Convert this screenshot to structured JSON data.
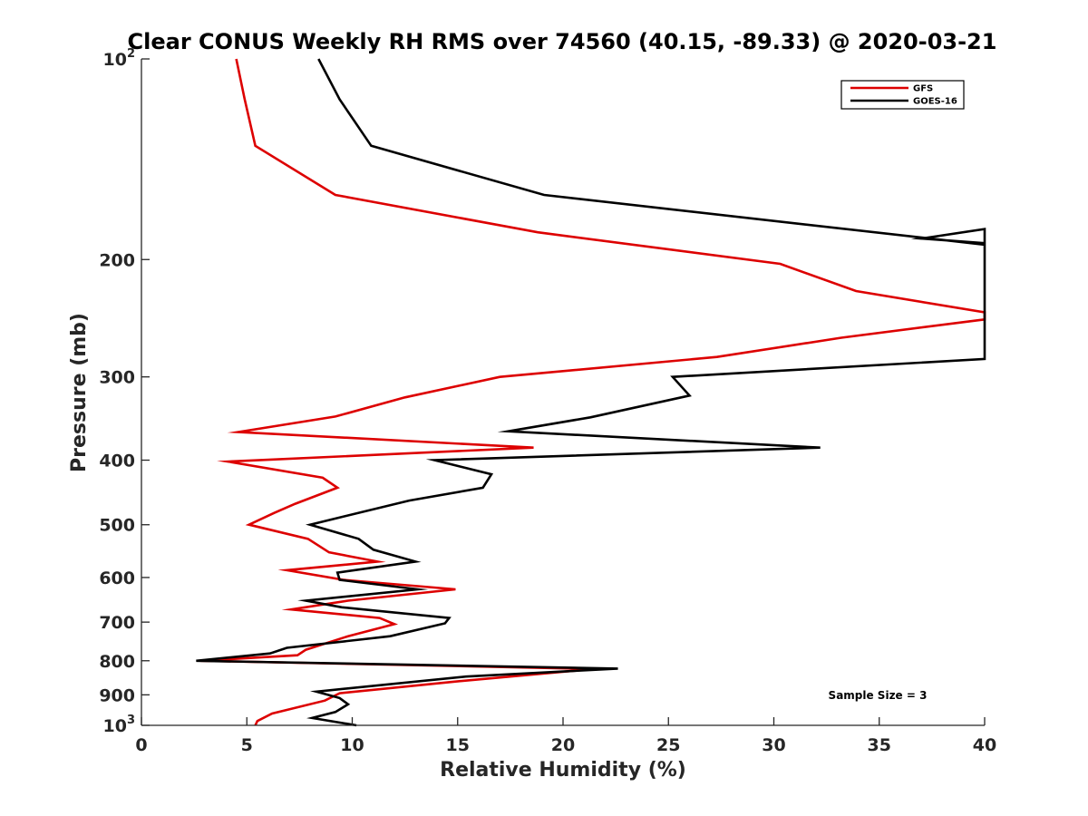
{
  "chart_data": {
    "type": "line",
    "title": "Clear CONUS Weekly RH RMS over 74560 (40.15, -89.33) @ 2020-03-21",
    "xlabel": "Relative Humidity (%)",
    "ylabel": "Pressure (mb)",
    "xlim": [
      0,
      40
    ],
    "ylim": [
      100,
      1000
    ],
    "yscale": "log",
    "y_reversed": true,
    "grid": false,
    "legend_position": "top-right",
    "x_ticks": [
      0,
      5,
      10,
      15,
      20,
      25,
      30,
      35,
      40
    ],
    "x_tick_labels": [
      "0",
      "5",
      "10",
      "15",
      "20",
      "25",
      "30",
      "35",
      "40"
    ],
    "y_ticks": [
      100,
      200,
      300,
      400,
      500,
      600,
      700,
      800,
      900,
      1000
    ],
    "y_tick_labels": [
      {
        "base": "10",
        "exp": "2"
      },
      {
        "base": "200",
        "exp": ""
      },
      {
        "base": "300",
        "exp": ""
      },
      {
        "base": "400",
        "exp": ""
      },
      {
        "base": "500",
        "exp": ""
      },
      {
        "base": "600",
        "exp": ""
      },
      {
        "base": "700",
        "exp": ""
      },
      {
        "base": "800",
        "exp": ""
      },
      {
        "base": "900",
        "exp": ""
      },
      {
        "base": "10",
        "exp": "3"
      }
    ],
    "annotation": "Sample Size = 3",
    "series": [
      {
        "name": "GFS",
        "color": "#dd0000",
        "points": [
          [
            4.5,
            100
          ],
          [
            4.9,
            115
          ],
          [
            5.4,
            135
          ],
          [
            9.2,
            160
          ],
          [
            18.8,
            182
          ],
          [
            30.3,
            203
          ],
          [
            33.9,
            223
          ],
          [
            40,
            240
          ],
          [
            40,
            246
          ],
          [
            33.2,
            262
          ],
          [
            27.3,
            280
          ],
          [
            17,
            300
          ],
          [
            12.5,
            322
          ],
          [
            9.2,
            344
          ],
          [
            4.6,
            363
          ],
          [
            18.6,
            383
          ],
          [
            4.1,
            402
          ],
          [
            8.6,
            425
          ],
          [
            9.3,
            440
          ],
          [
            7.3,
            465
          ],
          [
            6.3,
            480
          ],
          [
            5.1,
            500
          ],
          [
            7.9,
            525
          ],
          [
            8.9,
            550
          ],
          [
            11.2,
            568
          ],
          [
            6.9,
            585
          ],
          [
            9.6,
            605
          ],
          [
            14.9,
            625
          ],
          [
            9.8,
            650
          ],
          [
            7.1,
            670
          ],
          [
            11.3,
            690
          ],
          [
            12,
            705
          ],
          [
            9.8,
            735
          ],
          [
            7.8,
            770
          ],
          [
            7.4,
            785
          ],
          [
            2.8,
            800
          ],
          [
            21.5,
            823
          ],
          [
            14.8,
            860
          ],
          [
            9.4,
            895
          ],
          [
            8.7,
            918
          ],
          [
            6.2,
            960
          ],
          [
            5.5,
            985
          ],
          [
            5.4,
            1000
          ]
        ]
      },
      {
        "name": "GOES-16",
        "color": "#000000",
        "points": [
          [
            8.4,
            100
          ],
          [
            9.4,
            115
          ],
          [
            10.9,
            135
          ],
          [
            19.1,
            160
          ],
          [
            40,
            190
          ],
          [
            40,
            180
          ],
          [
            37,
            186
          ],
          [
            40,
            189
          ],
          [
            40,
            282
          ],
          [
            25.2,
            300
          ],
          [
            26,
            320
          ],
          [
            21.3,
            345
          ],
          [
            17.4,
            362
          ],
          [
            32.2,
            383
          ],
          [
            13.9,
            400
          ],
          [
            16.6,
            420
          ],
          [
            16.2,
            440
          ],
          [
            12.7,
            460
          ],
          [
            8,
            500
          ],
          [
            10.3,
            525
          ],
          [
            11,
            545
          ],
          [
            13,
            568
          ],
          [
            9.3,
            590
          ],
          [
            9.4,
            605
          ],
          [
            13.1,
            625
          ],
          [
            7.8,
            650
          ],
          [
            9.5,
            665
          ],
          [
            14.6,
            690
          ],
          [
            14.4,
            703
          ],
          [
            11.8,
            735
          ],
          [
            6.9,
            765
          ],
          [
            6.1,
            780
          ],
          [
            2.6,
            800
          ],
          [
            22.6,
            822
          ],
          [
            15.4,
            845
          ],
          [
            8.3,
            890
          ],
          [
            9.4,
            910
          ],
          [
            9.8,
            930
          ],
          [
            9.2,
            955
          ],
          [
            8.1,
            975
          ],
          [
            10.2,
            1000
          ]
        ]
      }
    ]
  }
}
